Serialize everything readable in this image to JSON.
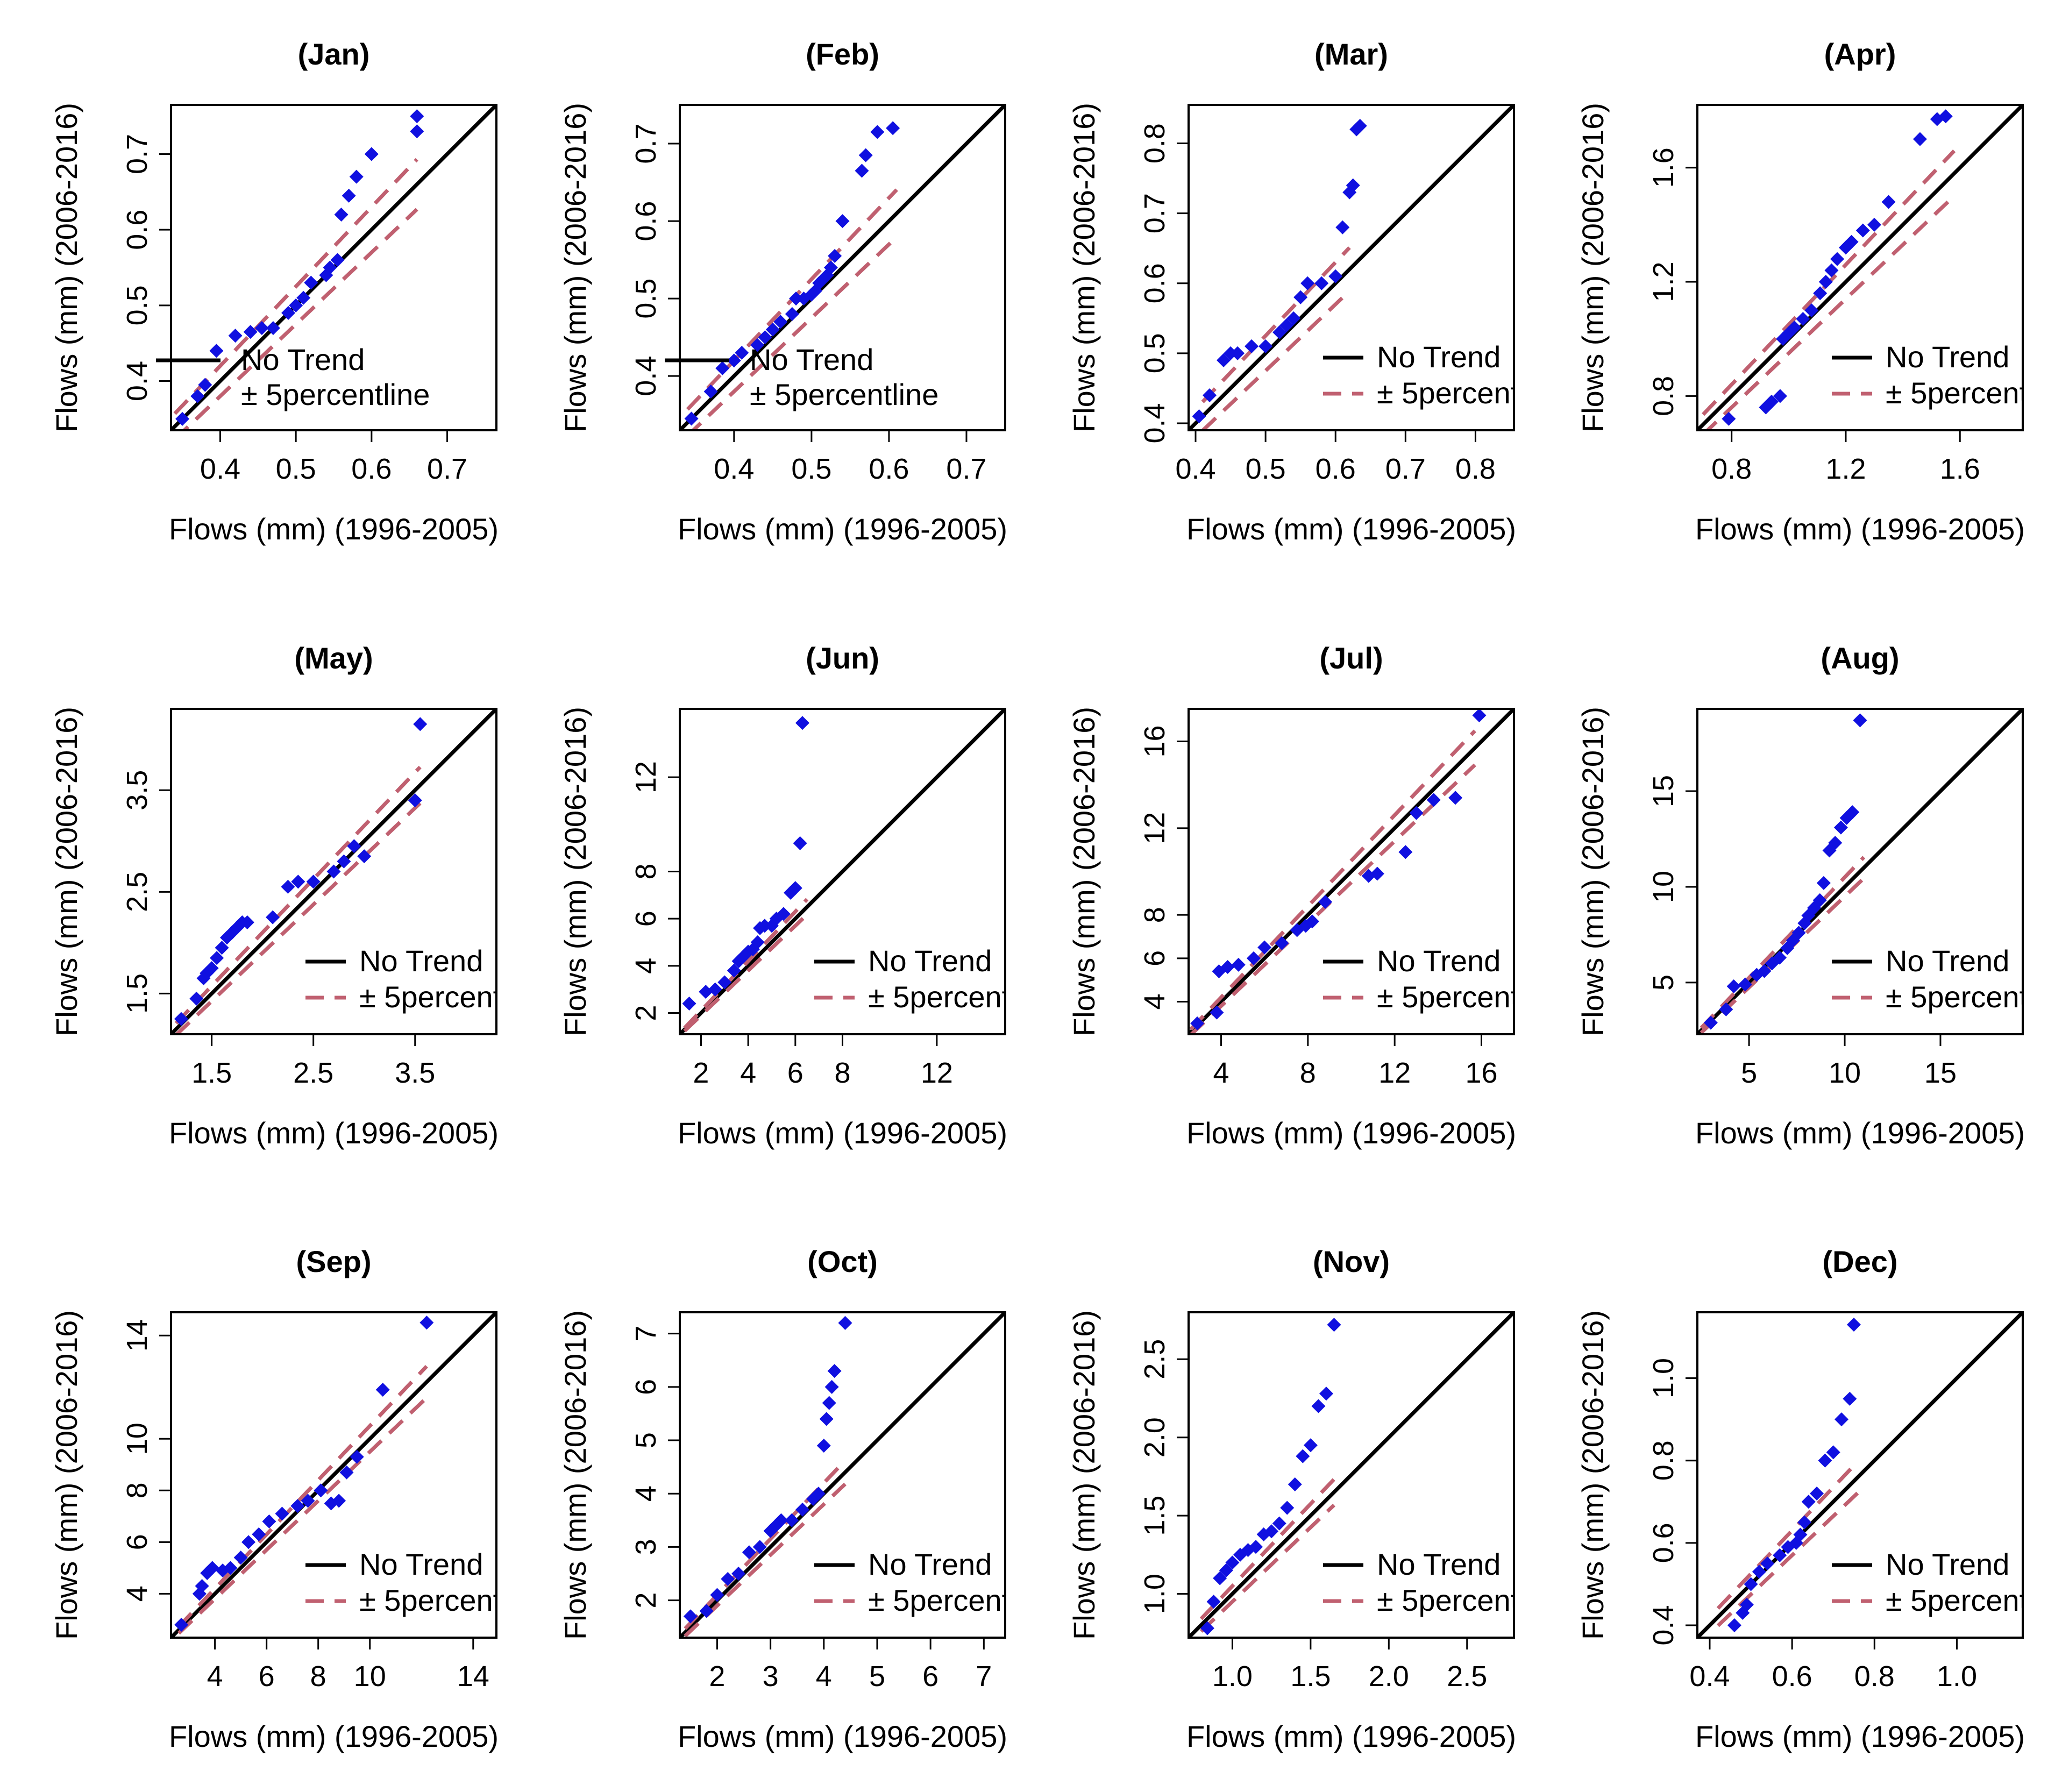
{
  "figure": {
    "xlabel": "Flows (mm) (1996-2005)",
    "ylabel": "Flows (mm) (2006-2016)",
    "legend": {
      "no_trend": "No Trend",
      "band": "± 5percentline",
      "band_truncated": "± 5percent"
    },
    "colors": {
      "points": "#1010e0",
      "no_trend_line": "#000000",
      "band_line": "#c06070"
    }
  },
  "chart_data": [
    {
      "type": "scatter",
      "title": "(Jan)",
      "xlabel": "Flows (mm) (1996-2005)",
      "ylabel": "Flows (mm) (2006-2016)",
      "xlim": [
        0.335,
        0.765
      ],
      "ylim": [
        0.335,
        0.765
      ],
      "xticks": [
        0.4,
        0.5,
        0.6,
        0.7
      ],
      "xtick_labels": [
        "0.4",
        "0.5",
        "0.6",
        "0.7"
      ],
      "yticks": [
        0.4,
        0.5,
        0.6,
        0.7
      ],
      "ytick_labels": [
        "0.4",
        "0.5",
        "0.6",
        "0.7"
      ],
      "band_range": [
        0.34,
        0.66
      ],
      "legend_label": "± 5percentline",
      "legend_position": "bottom-left-overlay",
      "x": [
        0.35,
        0.37,
        0.38,
        0.395,
        0.42,
        0.44,
        0.455,
        0.47,
        0.49,
        0.5,
        0.51,
        0.52,
        0.54,
        0.545,
        0.555,
        0.56,
        0.57,
        0.58,
        0.6,
        0.66,
        0.66
      ],
      "y": [
        0.35,
        0.38,
        0.395,
        0.44,
        0.46,
        0.465,
        0.47,
        0.47,
        0.49,
        0.5,
        0.51,
        0.53,
        0.54,
        0.55,
        0.56,
        0.62,
        0.645,
        0.67,
        0.7,
        0.73,
        0.75
      ]
    },
    {
      "type": "scatter",
      "title": "(Feb)",
      "xlabel": "Flows (mm) (1996-2005)",
      "ylabel": "Flows (mm) (2006-2016)",
      "xlim": [
        0.33,
        0.75
      ],
      "ylim": [
        0.33,
        0.75
      ],
      "xticks": [
        0.4,
        0.5,
        0.6,
        0.7
      ],
      "xtick_labels": [
        "0.4",
        "0.5",
        "0.6",
        "0.7"
      ],
      "yticks": [
        0.4,
        0.5,
        0.6,
        0.7
      ],
      "ytick_labels": [
        "0.4",
        "0.5",
        "0.6",
        "0.7"
      ],
      "band_range": [
        0.34,
        0.61
      ],
      "legend_label": "± 5percentline",
      "legend_position": "bottom-left-overlay",
      "x": [
        0.345,
        0.37,
        0.385,
        0.4,
        0.41,
        0.43,
        0.44,
        0.45,
        0.46,
        0.475,
        0.48,
        0.49,
        0.5,
        0.505,
        0.51,
        0.515,
        0.52,
        0.525,
        0.53,
        0.54,
        0.565,
        0.57,
        0.585,
        0.605
      ],
      "y": [
        0.345,
        0.38,
        0.41,
        0.42,
        0.43,
        0.44,
        0.45,
        0.46,
        0.47,
        0.48,
        0.5,
        0.5,
        0.505,
        0.51,
        0.52,
        0.525,
        0.53,
        0.54,
        0.555,
        0.6,
        0.665,
        0.685,
        0.715,
        0.72
      ]
    },
    {
      "type": "scatter",
      "title": "(Mar)",
      "xlabel": "Flows (mm) (1996-2005)",
      "ylabel": "Flows (mm) (2006-2016)",
      "xlim": [
        0.39,
        0.855
      ],
      "ylim": [
        0.39,
        0.855
      ],
      "xticks": [
        0.4,
        0.5,
        0.6,
        0.7,
        0.8
      ],
      "xtick_labels": [
        "0.4",
        "0.5",
        "0.6",
        "0.7",
        "0.8"
      ],
      "yticks": [
        0.4,
        0.5,
        0.6,
        0.7,
        0.8
      ],
      "ytick_labels": [
        "0.4",
        "0.5",
        "0.6",
        "0.7",
        "0.8"
      ],
      "band_range": [
        0.41,
        0.62
      ],
      "legend_label": "± 5percent",
      "legend_position": "bottom-right",
      "x": [
        0.405,
        0.42,
        0.44,
        0.45,
        0.46,
        0.48,
        0.5,
        0.52,
        0.53,
        0.54,
        0.55,
        0.56,
        0.58,
        0.6,
        0.61,
        0.62,
        0.625,
        0.63,
        0.635
      ],
      "y": [
        0.41,
        0.44,
        0.49,
        0.5,
        0.5,
        0.51,
        0.51,
        0.53,
        0.54,
        0.55,
        0.58,
        0.6,
        0.6,
        0.61,
        0.68,
        0.73,
        0.74,
        0.82,
        0.825
      ]
    },
    {
      "type": "scatter",
      "title": "(Apr)",
      "xlabel": "Flows (mm) (1996-2005)",
      "ylabel": "Flows (mm) (2006-2016)",
      "xlim": [
        0.68,
        1.82
      ],
      "ylim": [
        0.68,
        1.82
      ],
      "xticks": [
        0.8,
        1.2,
        1.6
      ],
      "xtick_labels": [
        "0.8",
        "1.2",
        "1.6"
      ],
      "yticks": [
        0.8,
        1.2,
        1.6
      ],
      "ytick_labels": [
        "0.8",
        "1.2",
        "1.6"
      ],
      "band_range": [
        0.7,
        1.58
      ],
      "legend_label": "± 5percent",
      "legend_position": "bottom-right",
      "x": [
        0.79,
        0.92,
        0.94,
        0.97,
        0.98,
        1.0,
        1.02,
        1.05,
        1.08,
        1.11,
        1.13,
        1.15,
        1.17,
        1.2,
        1.22,
        1.26,
        1.3,
        1.35,
        1.46,
        1.52,
        1.55
      ],
      "y": [
        0.72,
        0.76,
        0.78,
        0.8,
        1.0,
        1.02,
        1.04,
        1.07,
        1.1,
        1.16,
        1.2,
        1.24,
        1.28,
        1.32,
        1.34,
        1.38,
        1.4,
        1.48,
        1.7,
        1.77,
        1.78
      ]
    },
    {
      "type": "scatter",
      "title": "(May)",
      "xlabel": "Flows (mm) (1996-2005)",
      "ylabel": "Flows (mm) (2006-2016)",
      "xlim": [
        1.1,
        4.3
      ],
      "ylim": [
        1.1,
        4.3
      ],
      "xticks": [
        1.5,
        2.5,
        3.5
      ],
      "xtick_labels": [
        "1.5",
        "2.5",
        "3.5"
      ],
      "yticks": [
        1.5,
        2.5,
        3.5
      ],
      "ytick_labels": [
        "1.5",
        "2.5",
        "3.5"
      ],
      "band_range": [
        1.15,
        3.55
      ],
      "legend_label": "± 5percent",
      "legend_position": "bottom-right",
      "x": [
        1.2,
        1.35,
        1.42,
        1.45,
        1.5,
        1.55,
        1.6,
        1.65,
        1.7,
        1.75,
        1.8,
        1.85,
        2.1,
        2.25,
        2.35,
        2.5,
        2.7,
        2.8,
        2.9,
        3.0,
        3.5,
        3.55
      ],
      "y": [
        1.25,
        1.45,
        1.65,
        1.7,
        1.75,
        1.85,
        1.95,
        2.05,
        2.1,
        2.15,
        2.2,
        2.2,
        2.25,
        2.55,
        2.6,
        2.6,
        2.7,
        2.8,
        2.95,
        2.85,
        3.4,
        4.15
      ]
    },
    {
      "type": "scatter",
      "title": "(Jun)",
      "xlabel": "Flows (mm) (1996-2005)",
      "ylabel": "Flows (mm) (2006-2016)",
      "xlim": [
        1.1,
        14.9
      ],
      "ylim": [
        1.1,
        14.9
      ],
      "xticks": [
        2,
        4,
        6,
        8,
        12
      ],
      "xtick_labels": [
        "2",
        "4",
        "6",
        "8",
        "12"
      ],
      "yticks": [
        2,
        4,
        6,
        8,
        12
      ],
      "ytick_labels": [
        "2",
        "4",
        "6",
        "8",
        "12"
      ],
      "band_range": [
        1.3,
        6.5
      ],
      "legend_label": "± 5percent",
      "legend_position": "bottom-right",
      "x": [
        1.5,
        2.2,
        2.6,
        3.0,
        3.4,
        3.6,
        3.8,
        4.0,
        4.2,
        4.4,
        4.5,
        4.7,
        5.0,
        5.2,
        5.5,
        5.8,
        6.0,
        6.2,
        6.3
      ],
      "y": [
        2.4,
        2.9,
        3.0,
        3.3,
        3.8,
        4.2,
        4.4,
        4.6,
        4.7,
        5.0,
        5.6,
        5.7,
        5.7,
        6.0,
        6.2,
        7.1,
        7.3,
        9.2,
        14.3
      ]
    },
    {
      "type": "scatter",
      "title": "(Jul)",
      "xlabel": "Flows (mm) (1996-2005)",
      "ylabel": "Flows (mm) (2006-2016)",
      "xlim": [
        2.5,
        17.5
      ],
      "ylim": [
        2.5,
        17.5
      ],
      "xticks": [
        4,
        8,
        12,
        16
      ],
      "xtick_labels": [
        "4",
        "8",
        "12",
        "16"
      ],
      "yticks": [
        4,
        6,
        8,
        12,
        16
      ],
      "ytick_labels": [
        "4",
        "6",
        "8",
        "12",
        "16"
      ],
      "band_range": [
        2.6,
        15.7
      ],
      "legend_label": "± 5percent",
      "legend_position": "bottom-right",
      "x": [
        2.9,
        3.8,
        3.9,
        4.3,
        4.8,
        5.5,
        6.0,
        6.8,
        7.5,
        7.9,
        8.2,
        8.8,
        10.8,
        11.2,
        12.5,
        13.0,
        13.8,
        14.8,
        15.9
      ],
      "y": [
        3.0,
        3.5,
        5.4,
        5.6,
        5.7,
        6.0,
        6.5,
        6.7,
        7.3,
        7.5,
        7.7,
        8.6,
        9.8,
        9.9,
        10.9,
        12.7,
        13.3,
        13.4,
        17.2
      ]
    },
    {
      "type": "scatter",
      "title": "(Aug)",
      "xlabel": "Flows (mm) (1996-2005)",
      "ylabel": "Flows (mm) (2006-2016)",
      "xlim": [
        2.3,
        19.3
      ],
      "ylim": [
        2.3,
        19.3
      ],
      "xticks": [
        5,
        10,
        15
      ],
      "xtick_labels": [
        "5",
        "10",
        "15"
      ],
      "yticks": [
        5,
        10,
        15
      ],
      "ytick_labels": [
        "5",
        "10",
        "15"
      ],
      "band_range": [
        2.5,
        11.0
      ],
      "legend_label": "± 5percent",
      "legend_position": "bottom-right",
      "x": [
        3.0,
        3.8,
        4.2,
        4.8,
        5.4,
        5.8,
        6.2,
        6.6,
        7.0,
        7.3,
        7.6,
        7.9,
        8.1,
        8.4,
        8.7,
        8.9,
        9.2,
        9.5,
        9.8,
        10.1,
        10.4,
        10.8
      ],
      "y": [
        2.9,
        3.6,
        4.8,
        4.9,
        5.4,
        5.6,
        6.0,
        6.3,
        6.8,
        7.2,
        7.6,
        8.1,
        8.5,
        8.9,
        9.3,
        10.2,
        11.9,
        12.3,
        13.1,
        13.6,
        13.9,
        18.7
      ]
    },
    {
      "type": "scatter",
      "title": "(Sep)",
      "xlabel": "Flows (mm) (1996-2005)",
      "ylabel": "Flows (mm) (2006-2016)",
      "xlim": [
        2.3,
        14.9
      ],
      "ylim": [
        2.3,
        14.9
      ],
      "xticks": [
        4,
        6,
        8,
        10,
        14
      ],
      "xtick_labels": [
        "4",
        "6",
        "8",
        "10",
        "14"
      ],
      "yticks": [
        4,
        6,
        8,
        10,
        14
      ],
      "ytick_labels": [
        "4",
        "6",
        "8",
        "10",
        "14"
      ],
      "band_range": [
        2.6,
        12.2
      ],
      "legend_label": "± 5percent",
      "legend_position": "bottom-right",
      "x": [
        2.7,
        3.4,
        3.5,
        3.7,
        3.9,
        4.3,
        4.6,
        5.0,
        5.3,
        5.7,
        6.1,
        6.6,
        7.2,
        7.6,
        8.1,
        8.5,
        8.8,
        9.1,
        9.5,
        10.5,
        12.2
      ],
      "y": [
        2.8,
        4.0,
        4.3,
        4.8,
        5.0,
        4.9,
        5.0,
        5.4,
        6.0,
        6.3,
        6.8,
        7.1,
        7.4,
        7.6,
        8.0,
        7.5,
        7.6,
        8.7,
        9.3,
        11.9,
        14.5
      ]
    },
    {
      "type": "scatter",
      "title": "(Oct)",
      "xlabel": "Flows (mm) (1996-2005)",
      "ylabel": "Flows (mm) (2006-2016)",
      "xlim": [
        1.3,
        7.4
      ],
      "ylim": [
        1.3,
        7.4
      ],
      "xticks": [
        2,
        3,
        4,
        5,
        6,
        7
      ],
      "xtick_labels": [
        "2",
        "3",
        "4",
        "5",
        "6",
        "7"
      ],
      "yticks": [
        2,
        3,
        4,
        5,
        6,
        7
      ],
      "ytick_labels": [
        "2",
        "3",
        "4",
        "5",
        "6",
        "7"
      ],
      "band_range": [
        1.4,
        4.4
      ],
      "legend_label": "± 5percent",
      "legend_position": "bottom-right",
      "x": [
        1.5,
        1.8,
        2.0,
        2.2,
        2.4,
        2.6,
        2.8,
        3.0,
        3.1,
        3.2,
        3.4,
        3.6,
        3.8,
        3.9,
        4.0,
        4.05,
        4.1,
        4.15,
        4.2,
        4.4
      ],
      "y": [
        1.7,
        1.8,
        2.1,
        2.4,
        2.5,
        2.9,
        3.0,
        3.3,
        3.4,
        3.5,
        3.5,
        3.7,
        3.9,
        4.0,
        4.9,
        5.4,
        5.7,
        6.0,
        6.3,
        7.2
      ]
    },
    {
      "type": "scatter",
      "title": "(Nov)",
      "xlabel": "Flows (mm) (1996-2005)",
      "ylabel": "Flows (mm) (2006-2016)",
      "xlim": [
        0.72,
        2.8
      ],
      "ylim": [
        0.72,
        2.8
      ],
      "xticks": [
        1.0,
        1.5,
        2.0,
        2.5
      ],
      "xtick_labels": [
        "1.0",
        "1.5",
        "2.0",
        "2.5"
      ],
      "yticks": [
        1.0,
        1.5,
        2.0,
        2.5
      ],
      "ytick_labels": [
        "1.0",
        "1.5",
        "2.0",
        "2.5"
      ],
      "band_range": [
        0.8,
        1.65
      ],
      "legend_label": "± 5percent",
      "legend_position": "bottom-right",
      "x": [
        0.84,
        0.88,
        0.92,
        0.96,
        1.0,
        1.05,
        1.1,
        1.15,
        1.2,
        1.25,
        1.3,
        1.35,
        1.4,
        1.45,
        1.5,
        1.55,
        1.6,
        1.65
      ],
      "y": [
        0.78,
        0.95,
        1.1,
        1.15,
        1.2,
        1.25,
        1.28,
        1.3,
        1.38,
        1.4,
        1.45,
        1.55,
        1.7,
        1.88,
        1.95,
        2.2,
        2.28,
        2.72
      ]
    },
    {
      "type": "scatter",
      "title": "(Dec)",
      "xlabel": "Flows (mm) (1996-2005)",
      "ylabel": "Flows (mm) (2006-2016)",
      "xlim": [
        0.37,
        1.16
      ],
      "ylim": [
        0.37,
        1.16
      ],
      "xticks": [
        0.4,
        0.6,
        0.8,
        1.0
      ],
      "xtick_labels": [
        "0.4",
        "0.6",
        "0.8",
        "1.0"
      ],
      "yticks": [
        0.4,
        0.6,
        0.8,
        1.0
      ],
      "ytick_labels": [
        "0.4",
        "0.6",
        "0.8",
        "1.0"
      ],
      "band_range": [
        0.42,
        0.76
      ],
      "legend_label": "± 5percent",
      "legend_position": "bottom-right",
      "x": [
        0.46,
        0.48,
        0.49,
        0.5,
        0.52,
        0.54,
        0.57,
        0.59,
        0.61,
        0.62,
        0.63,
        0.64,
        0.66,
        0.68,
        0.7,
        0.72,
        0.74,
        0.75
      ],
      "y": [
        0.4,
        0.43,
        0.45,
        0.5,
        0.53,
        0.55,
        0.57,
        0.59,
        0.6,
        0.62,
        0.65,
        0.7,
        0.72,
        0.8,
        0.82,
        0.9,
        0.95,
        1.13
      ]
    }
  ]
}
